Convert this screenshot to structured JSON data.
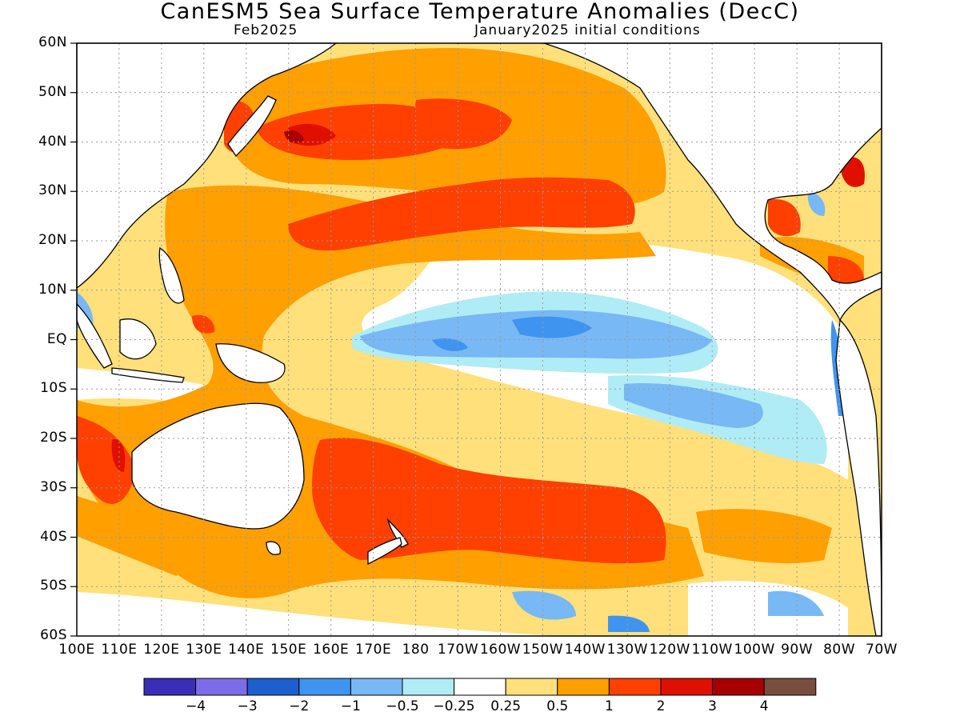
{
  "title": "CanESM5 Sea Surface Temperature Anomalies (DecC)",
  "subtitle_left": "Feb2025",
  "subtitle_right": "January2025 initial conditions",
  "lat_labels": [
    "60N",
    "50N",
    "40N",
    "30N",
    "20N",
    "10N",
    "EQ",
    "10S",
    "20S",
    "30S",
    "40S",
    "50S",
    "60S"
  ],
  "lon_labels": [
    "100E",
    "110E",
    "120E",
    "130E",
    "140E",
    "150E",
    "160E",
    "170E",
    "180",
    "170W",
    "160W",
    "150W",
    "140W",
    "130W",
    "120W",
    "110W",
    "100W",
    "90W",
    "80W",
    "70W"
  ],
  "colorbar": {
    "colors": [
      "#3a2db8",
      "#7d6ce8",
      "#1d5fcf",
      "#3f94ef",
      "#78b8f5",
      "#b0ecf5",
      "#ffffff",
      "#ffe07a",
      "#ff9f00",
      "#ff4000",
      "#e01000",
      "#a80000",
      "#7a4e3f"
    ],
    "labels": [
      "−4",
      "−3",
      "−2",
      "−1",
      "−0.5",
      "−0.25",
      "0.25",
      "0.5",
      "1",
      "2",
      "3",
      "4"
    ]
  },
  "colors": {
    "land": "#ffffff",
    "warm1": "#ffe07a",
    "warm2": "#ff9f00",
    "warm3": "#ff4000",
    "warm4": "#e01000",
    "warm5": "#a80000",
    "cool1": "#b0ecf5",
    "cool2": "#78b8f5",
    "cool3": "#3f94ef",
    "cool4": "#1d5fcf"
  }
}
